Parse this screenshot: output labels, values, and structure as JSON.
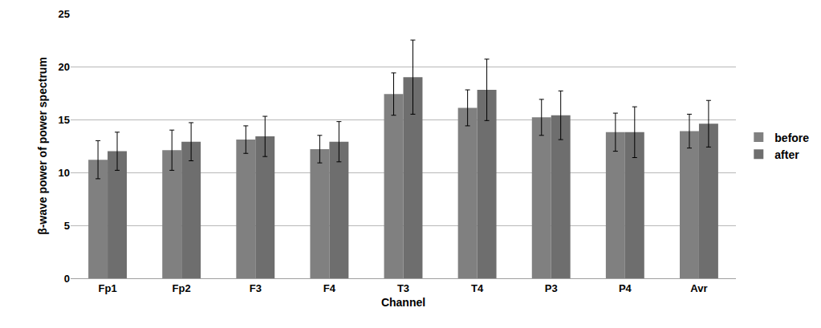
{
  "chart_data": {
    "type": "bar",
    "x_label": "Channel",
    "y_label": "β-wave power of power spectrum",
    "categories": [
      "Fp1",
      "Fp2",
      "F3",
      "F4",
      "T3",
      "T4",
      "P3",
      "P4",
      "Avr"
    ],
    "series": [
      {
        "name": "before",
        "color": "#808080",
        "values": [
          11.2,
          12.1,
          13.1,
          12.2,
          17.4,
          16.1,
          15.2,
          13.8,
          13.9
        ],
        "error": [
          1.8,
          1.9,
          1.3,
          1.3,
          2.0,
          1.7,
          1.7,
          1.8,
          1.6
        ]
      },
      {
        "name": "after",
        "color": "#6e6e6e",
        "values": [
          12.0,
          12.9,
          13.4,
          12.9,
          19.0,
          17.8,
          15.4,
          13.8,
          14.6
        ],
        "error": [
          1.8,
          1.8,
          1.9,
          1.9,
          3.5,
          2.9,
          2.3,
          2.4,
          2.2
        ]
      }
    ],
    "ylim": [
      0,
      25
    ],
    "yticks": [
      0,
      5,
      10,
      15,
      20,
      25
    ],
    "grid": true,
    "legend": "right"
  }
}
